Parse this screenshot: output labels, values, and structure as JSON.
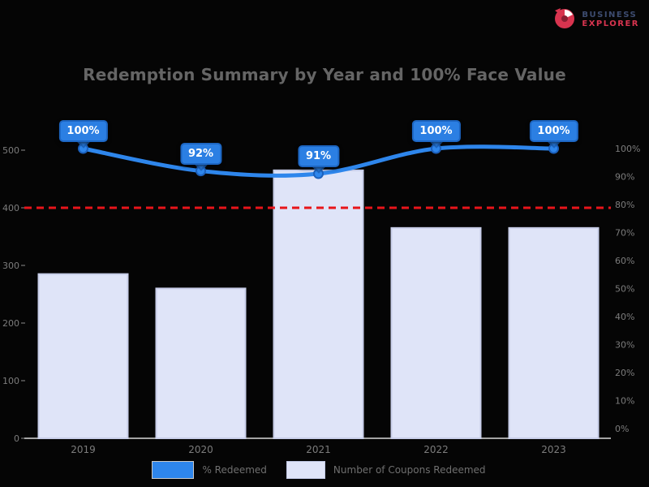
{
  "watermark": {
    "line1": "BUSINESS",
    "line2": "EXPLORER",
    "accent_color": "#d8344f"
  },
  "chart_data": {
    "type": "combo-bar-line",
    "title": "Redemption Summary by Year and 100% Face Value",
    "categories": [
      "2019",
      "2020",
      "2021",
      "2022",
      "2023"
    ],
    "series": [
      {
        "name": "% Redeemed",
        "type": "line",
        "axis": "right",
        "values": [
          100,
          92,
          91,
          100,
          100
        ],
        "point_labels": [
          "100%",
          "92%",
          "91%",
          "100%",
          "100%"
        ],
        "color": "#2e86ec"
      },
      {
        "name": "Number of Coupons Redeemed",
        "type": "bar",
        "axis": "left",
        "values": [
          285,
          260,
          465,
          365,
          365
        ],
        "color": "#dfe4f8",
        "border_color": "#c7cde8"
      }
    ],
    "threshold": {
      "axis": "left",
      "value": 400,
      "color": "#e8151a",
      "style": "dashed"
    },
    "left_axis": {
      "ticks": [
        "500",
        "400",
        "300",
        "200",
        "100",
        "0"
      ],
      "range": [
        0,
        500
      ]
    },
    "right_axis": {
      "ticks": [
        "100%",
        "90%",
        "80%",
        "70%",
        "60%",
        "50%",
        "40%",
        "30%",
        "20%",
        "10%",
        "0%"
      ],
      "range": [
        0,
        100
      ]
    },
    "legend_position": "bottom",
    "grid": false,
    "background": "#050505",
    "colors": {
      "title_text": "#656565",
      "axis_text": "#7c7c7c",
      "axis_line": "#d9d9d9",
      "badge_bg": "#2b7fe3",
      "badge_border": "#1d66c2",
      "badge_text": "#ffffff"
    }
  }
}
